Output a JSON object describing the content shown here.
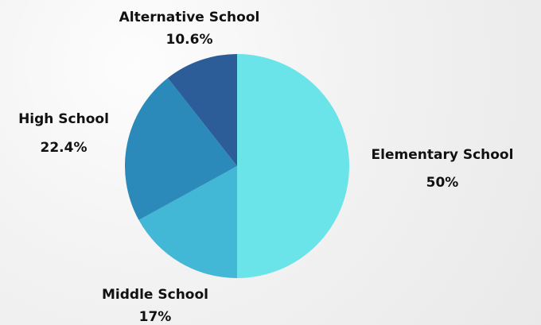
{
  "chart_data": {
    "type": "pie",
    "title": "",
    "slices": [
      {
        "label": "Elementary School",
        "value": 50,
        "value_label": "50%",
        "color": "#6ae4e8"
      },
      {
        "label": "Middle School",
        "value": 17,
        "value_label": "17%",
        "color": "#43b7d6"
      },
      {
        "label": "High School",
        "value": 22.4,
        "value_label": "22.4%",
        "color": "#2b8ab9"
      },
      {
        "label": "Alternative School",
        "value": 10.6,
        "value_label": "10.6%",
        "color": "#2c5d98"
      }
    ],
    "start_angle": "12 o'clock",
    "direction": "clockwise",
    "legend": "none (labels placed beside slices)"
  }
}
